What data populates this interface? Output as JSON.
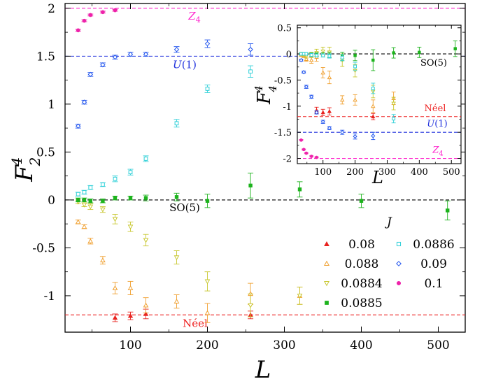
{
  "chart_data": [
    {
      "type": "scatter",
      "title": "",
      "xlabel": "L",
      "ylabel": "F_2^4",
      "xlim": [
        15,
        535
      ],
      "ylim": [
        -1.38,
        2.05
      ],
      "xticks": [
        100,
        200,
        300,
        400,
        500
      ],
      "xtick_labels": [
        "100",
        "200",
        "300",
        "400",
        "500"
      ],
      "yticks": [
        2,
        1.5,
        1,
        0.5,
        0,
        -0.5,
        -1
      ],
      "ytick_labels": [
        "2",
        "1.5",
        "1",
        "0.5",
        "0",
        "-0.5",
        "-1"
      ],
      "grid": false,
      "legend_title": "J",
      "legend_placement": "bottom-right",
      "reference_lines": [
        {
          "y": 2,
          "label": "Z_4",
          "color": "#ff22cc"
        },
        {
          "y": 1.5,
          "label": "U(1)",
          "color": "#2233dd"
        },
        {
          "y": 0,
          "label": "SO(5)",
          "color": "#000000"
        },
        {
          "y": -1.2,
          "label": "Néel",
          "color": "#ee2222"
        }
      ],
      "series": [
        {
          "name": "0.08",
          "marker": "filled-triangle-up",
          "color": "#e8231f",
          "x": [
            80,
            100,
            120,
            256
          ],
          "y": [
            -1.23,
            -1.21,
            -1.19,
            -1.2
          ],
          "err": [
            0.04,
            0.04,
            0.05,
            0.04
          ]
        },
        {
          "name": "0.088",
          "marker": "open-triangle-up",
          "color": "#f0a030",
          "x": [
            32,
            40,
            48,
            64,
            80,
            100,
            120,
            160,
            200,
            256,
            320
          ],
          "y": [
            -0.23,
            -0.28,
            -0.43,
            -0.63,
            -0.92,
            -0.92,
            -1.1,
            -1.06,
            -1.18,
            -0.98,
            -1.0
          ],
          "err": [
            0.02,
            0.02,
            0.03,
            0.04,
            0.06,
            0.07,
            0.08,
            0.07,
            0.1,
            0.11,
            0.09
          ]
        },
        {
          "name": "0.0884",
          "marker": "open-triangle-down",
          "color": "#c9c832",
          "x": [
            32,
            40,
            48,
            64,
            80,
            100,
            120,
            160,
            200,
            256,
            320
          ],
          "y": [
            -0.02,
            -0.05,
            -0.07,
            -0.1,
            -0.2,
            -0.28,
            -0.42,
            -0.6,
            -0.85,
            -1.1,
            -1.0
          ],
          "err": [
            0.02,
            0.02,
            0.03,
            0.03,
            0.05,
            0.05,
            0.06,
            0.07,
            0.1,
            0.12,
            0.09
          ]
        },
        {
          "name": "0.0885",
          "marker": "filled-square",
          "color": "#1db31d",
          "x": [
            32,
            40,
            48,
            64,
            80,
            100,
            120,
            160,
            200,
            256,
            320,
            400,
            512
          ],
          "y": [
            0.0,
            0.0,
            -0.01,
            -0.01,
            0.02,
            0.02,
            0.02,
            0.03,
            -0.01,
            0.15,
            0.11,
            -0.01,
            -0.11
          ],
          "err": [
            0.02,
            0.02,
            0.02,
            0.02,
            0.02,
            0.02,
            0.03,
            0.04,
            0.07,
            0.13,
            0.08,
            0.07,
            0.1
          ]
        },
        {
          "name": "0.0886",
          "marker": "open-square",
          "color": "#30d0d8",
          "x": [
            32,
            40,
            48,
            64,
            80,
            100,
            120,
            160,
            200,
            256
          ],
          "y": [
            0.06,
            0.08,
            0.13,
            0.16,
            0.22,
            0.29,
            0.43,
            0.8,
            1.16,
            1.34
          ],
          "err": [
            0.02,
            0.02,
            0.02,
            0.02,
            0.03,
            0.03,
            0.03,
            0.04,
            0.04,
            0.06
          ]
        },
        {
          "name": "0.09",
          "marker": "open-diamond",
          "color": "#2255ee",
          "x": [
            32,
            40,
            48,
            64,
            80,
            100,
            120,
            160,
            200,
            256
          ],
          "y": [
            0.77,
            1.02,
            1.31,
            1.41,
            1.49,
            1.52,
            1.52,
            1.57,
            1.63,
            1.57
          ],
          "err": [
            0.02,
            0.02,
            0.02,
            0.02,
            0.02,
            0.02,
            0.02,
            0.03,
            0.04,
            0.06
          ]
        },
        {
          "name": "0.1",
          "marker": "filled-circle",
          "color": "#ee22aa",
          "x": [
            32,
            40,
            48,
            64,
            80
          ],
          "y": [
            1.77,
            1.87,
            1.93,
            1.96,
            1.98
          ],
          "err": [
            0.01,
            0.01,
            0.01,
            0.01,
            0.01
          ]
        }
      ]
    },
    {
      "type": "scatter",
      "title": "",
      "xlabel": "L",
      "ylabel": "F_4^4",
      "xlim": [
        20,
        530
      ],
      "ylim": [
        -2.1,
        0.55
      ],
      "xticks": [
        100,
        200,
        300,
        400,
        500
      ],
      "xtick_labels": [
        "100",
        "200",
        "300",
        "400",
        "500"
      ],
      "yticks": [
        0.5,
        0,
        -0.5,
        -1,
        -1.5,
        -2
      ],
      "ytick_labels": [
        "0.5",
        "0",
        "-0.5",
        "-1",
        "-1.5",
        "-2"
      ],
      "grid": false,
      "reference_lines": [
        {
          "y": 0,
          "label": "SO(5)",
          "color": "#000000"
        },
        {
          "y": -1.2,
          "label": "Néel",
          "color": "#ee2222"
        },
        {
          "y": -1.5,
          "label": "U(1)",
          "color": "#2233dd"
        },
        {
          "y": -2,
          "label": "Z_4",
          "color": "#ff22cc"
        }
      ],
      "series": [
        {
          "name": "0.08",
          "marker": "filled-triangle-up",
          "color": "#e8231f",
          "x": [
            80,
            100,
            120,
            256
          ],
          "y": [
            -1.08,
            -1.12,
            -1.1,
            -1.2
          ],
          "err": [
            0.06,
            0.06,
            0.07,
            0.06
          ]
        },
        {
          "name": "0.088",
          "marker": "open-triangle-up",
          "color": "#f0a030",
          "x": [
            32,
            40,
            48,
            64,
            80,
            100,
            120,
            160,
            200,
            256,
            320
          ],
          "y": [
            -0.02,
            -0.04,
            -0.1,
            -0.12,
            -0.06,
            -0.36,
            -0.45,
            -0.88,
            -0.88,
            -1.0,
            -0.85
          ],
          "err": [
            0.03,
            0.03,
            0.04,
            0.06,
            0.08,
            0.1,
            0.12,
            0.08,
            0.1,
            0.12,
            0.12
          ]
        },
        {
          "name": "0.0884",
          "marker": "open-triangle-down",
          "color": "#c9c832",
          "x": [
            32,
            40,
            48,
            64,
            80,
            100,
            120,
            160,
            200,
            256,
            320
          ],
          "y": [
            0.0,
            -0.02,
            -0.04,
            -0.02,
            0.02,
            0.05,
            0.03,
            -0.12,
            -0.32,
            -0.72,
            -0.95
          ],
          "err": [
            0.03,
            0.03,
            0.04,
            0.05,
            0.07,
            0.08,
            0.1,
            0.12,
            0.12,
            0.12,
            0.12
          ]
        },
        {
          "name": "0.0885",
          "marker": "filled-square",
          "color": "#1db31d",
          "x": [
            32,
            40,
            48,
            64,
            80,
            100,
            120,
            160,
            200,
            256,
            320,
            400,
            512
          ],
          "y": [
            0.0,
            0.0,
            0.0,
            -0.01,
            -0.01,
            -0.02,
            -0.02,
            -0.05,
            -0.03,
            -0.12,
            0.02,
            0.03,
            0.1
          ],
          "err": [
            0.02,
            0.02,
            0.02,
            0.03,
            0.03,
            0.04,
            0.05,
            0.08,
            0.1,
            0.2,
            0.1,
            0.1,
            0.15
          ]
        },
        {
          "name": "0.0886",
          "marker": "open-square",
          "color": "#30d0d8",
          "x": [
            32,
            40,
            48,
            64,
            80,
            100,
            120,
            160,
            200,
            256,
            320
          ],
          "y": [
            0.0,
            0.0,
            0.0,
            -0.02,
            -0.03,
            -0.03,
            -0.04,
            -0.07,
            -0.24,
            -0.66,
            -1.24
          ],
          "err": [
            0.02,
            0.02,
            0.02,
            0.03,
            0.03,
            0.03,
            0.04,
            0.06,
            0.08,
            0.1,
            0.08
          ]
        },
        {
          "name": "0.09",
          "marker": "open-diamond",
          "color": "#2255ee",
          "x": [
            32,
            40,
            48,
            64,
            80,
            100,
            120,
            160,
            200,
            256
          ],
          "y": [
            -0.12,
            -0.35,
            -0.63,
            -0.82,
            -1.12,
            -1.3,
            -1.42,
            -1.5,
            -1.58,
            -1.57
          ],
          "err": [
            0.02,
            0.02,
            0.03,
            0.03,
            0.03,
            0.03,
            0.03,
            0.04,
            0.05,
            0.07
          ]
        },
        {
          "name": "0.1",
          "marker": "filled-circle",
          "color": "#ee22aa",
          "x": [
            32,
            40,
            48,
            64,
            80
          ],
          "y": [
            -1.65,
            -1.83,
            -1.9,
            -1.96,
            -1.98
          ],
          "err": [
            0.01,
            0.01,
            0.01,
            0.01,
            0.01
          ]
        }
      ]
    }
  ]
}
